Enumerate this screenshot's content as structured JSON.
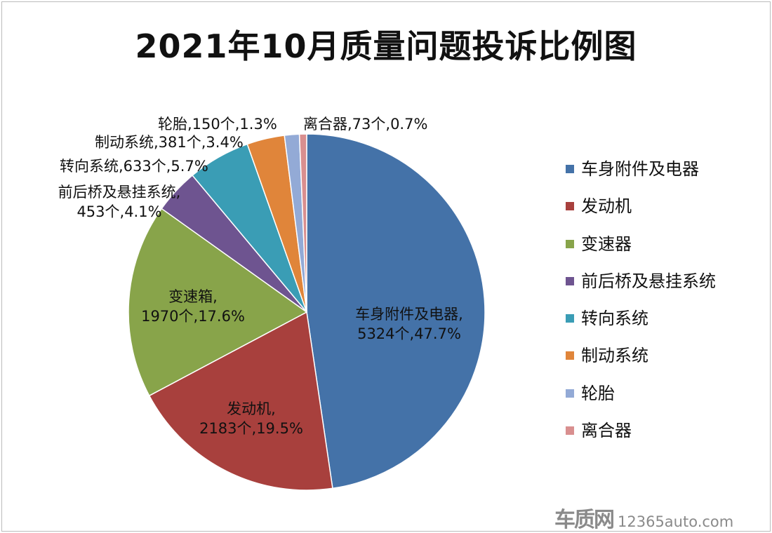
{
  "chart_data": {
    "type": "pie",
    "title": "2021年10月质量问题投诉比例图",
    "start": "top",
    "direction": "clockwise",
    "slices": [
      {
        "legend": "车身附件及电器",
        "label": "车身附件及电器,",
        "count_label": "5324个,47.7%",
        "value": 5324,
        "percent": 47.7,
        "color": "#4472a8"
      },
      {
        "legend": "发动机",
        "label": "发动机,",
        "count_label": "2183个,19.5%",
        "value": 2183,
        "percent": 19.5,
        "color": "#a8403d"
      },
      {
        "legend": "变速器",
        "label": "变速箱,",
        "count_label": "1970个,17.6%",
        "value": 1970,
        "percent": 17.6,
        "color": "#88a44a"
      },
      {
        "legend": "前后桥及悬挂系统",
        "label": "前后桥及悬挂系统,",
        "count_label": "453个,4.1%",
        "value": 453,
        "percent": 4.1,
        "color": "#6e5490"
      },
      {
        "legend": "转向系统",
        "label": "转向系统,633个,5.7%",
        "count_label": "",
        "value": 633,
        "percent": 5.7,
        "color": "#3a9db5"
      },
      {
        "legend": "制动系统",
        "label": "制动系统,381个,3.4%",
        "count_label": "",
        "value": 381,
        "percent": 3.4,
        "color": "#e0853a"
      },
      {
        "legend": "轮胎",
        "label": "轮胎,150个,1.3%",
        "count_label": "",
        "value": 150,
        "percent": 1.3,
        "color": "#93aad6"
      },
      {
        "legend": "离合器",
        "label": "离合器,73个,0.7%",
        "count_label": "",
        "value": 73,
        "percent": 0.7,
        "color": "#d98f8f"
      }
    ],
    "legend_position": "right"
  },
  "watermark": {
    "logo": "车质网",
    "url": "12365auto.com"
  }
}
